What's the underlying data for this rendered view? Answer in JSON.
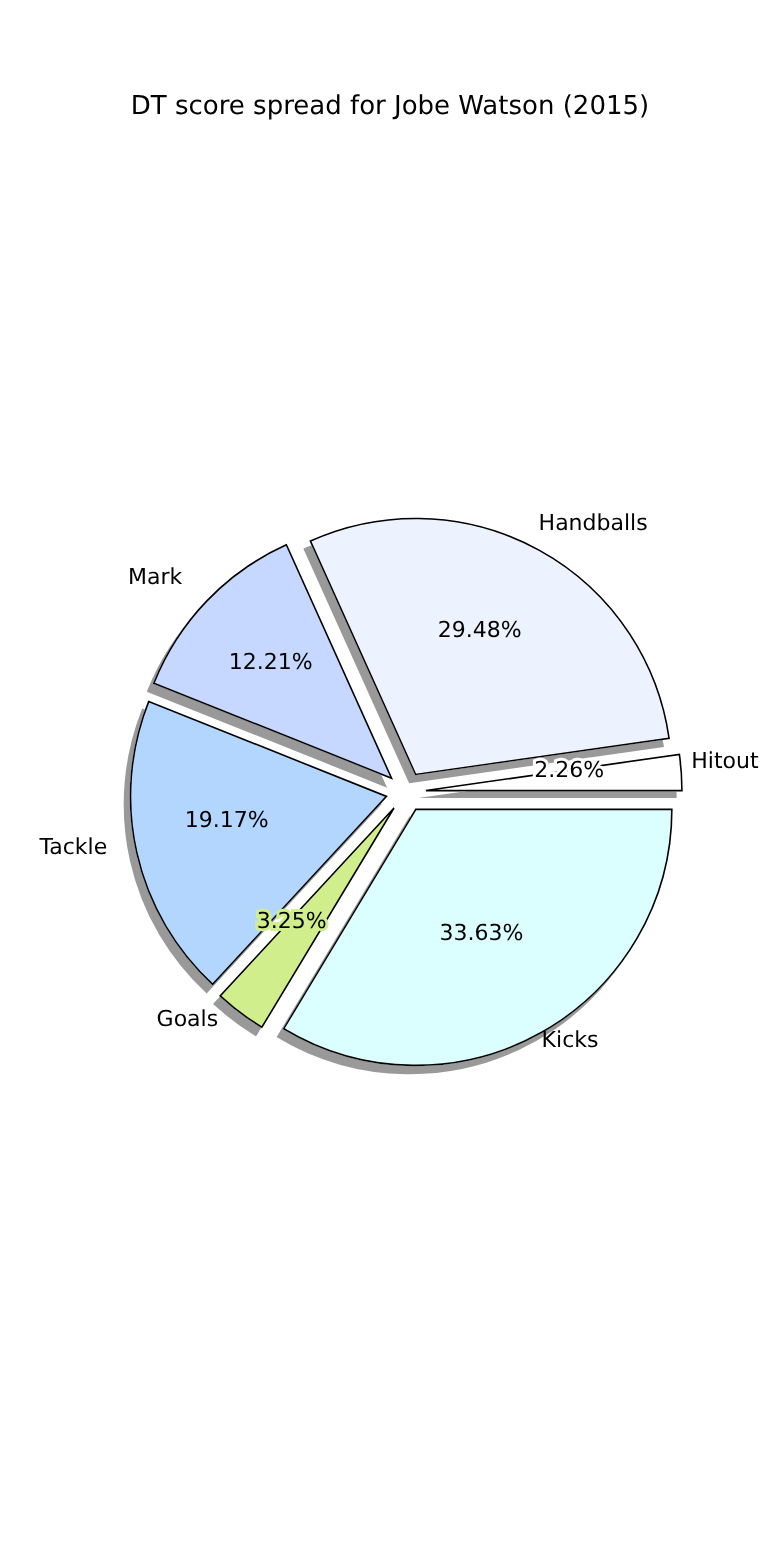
{
  "chart_data": {
    "type": "pie",
    "title": "DT score spread for Jobe Watson (2015)",
    "categories": [
      "Hitout",
      "Handballs",
      "Mark",
      "Tackle",
      "Goals",
      "Kicks"
    ],
    "values": [
      2.26,
      29.48,
      12.21,
      19.17,
      3.25,
      33.63
    ],
    "value_labels": [
      "2.26%",
      "29.48%",
      "12.21%",
      "19.17%",
      "3.25%",
      "33.63%"
    ],
    "colors": [
      "#ffffff",
      "#edf2ff",
      "#c6d8ff",
      "#b3d6ff",
      "#d0ee8c",
      "#dbfefe"
    ]
  }
}
